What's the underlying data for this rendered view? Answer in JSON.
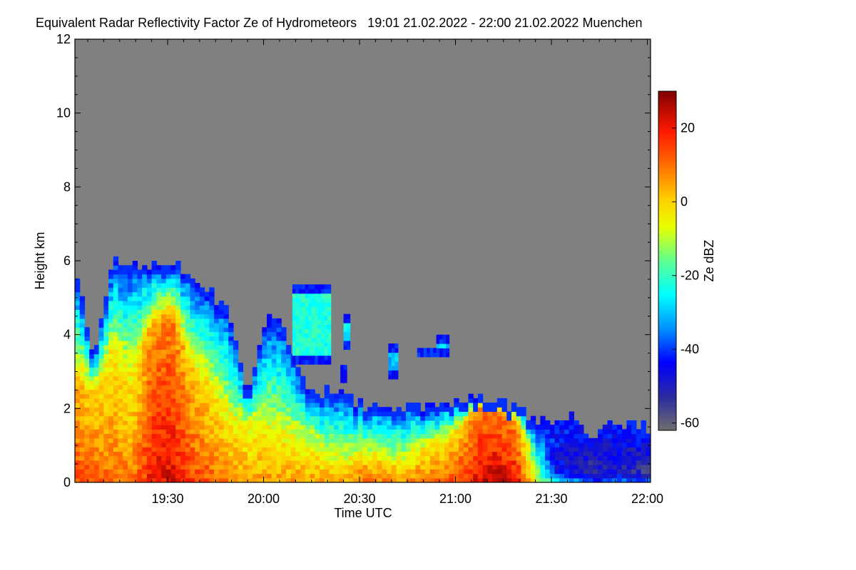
{
  "title": "Equivalent Radar Reflectivity Factor Ze of Hydrometeors   19:01 21.02.2022 - 22:00 21.02.2022 Muenchen",
  "chart_data": {
    "type": "heatmap",
    "title": "Equivalent Radar Reflectivity Factor Ze of Hydrometeors   19:01 21.02.2022 - 22:00 21.02.2022 Muenchen",
    "xlabel": "Time UTC",
    "ylabel": "Height km",
    "x_range": [
      "19:01",
      "22:00"
    ],
    "xlim_minutes": [
      0,
      180
    ],
    "x_ticks": [
      {
        "minute": 29,
        "label": "19:30"
      },
      {
        "minute": 59,
        "label": "20:00"
      },
      {
        "minute": 89,
        "label": "20:30"
      },
      {
        "minute": 119,
        "label": "21:00"
      },
      {
        "minute": 149,
        "label": "21:30"
      },
      {
        "minute": 179,
        "label": "22:00"
      }
    ],
    "ylim": [
      0,
      12
    ],
    "y_ticks": [
      0,
      2,
      4,
      6,
      8,
      10,
      12
    ],
    "y_tick_labels": [
      "0",
      "2",
      "4",
      "6",
      "8",
      "10",
      "12"
    ],
    "background_color": "#808080",
    "colorbar": {
      "label": "Ze dBZ",
      "range": [
        -62,
        30
      ],
      "ticks": [
        20,
        0,
        -20,
        -40,
        -60
      ],
      "tick_labels": [
        "20",
        "0",
        "-20",
        "-40",
        "-60"
      ],
      "colormap": "jet-like (grey at low end, dark red at high end)"
    },
    "echo_profile": [
      {
        "t": 0,
        "top": 5.9,
        "core": 2.8,
        "ze_low": 15
      },
      {
        "t": 6,
        "top": 3.2,
        "core": 2.4,
        "ze_low": 12
      },
      {
        "t": 12,
        "top": 6.0,
        "core": 3.5,
        "ze_low": 10
      },
      {
        "t": 18,
        "top": 5.8,
        "core": 3.0,
        "ze_low": 8
      },
      {
        "t": 24,
        "top": 5.7,
        "core": 4.0,
        "ze_low": 20
      },
      {
        "t": 30,
        "top": 6.0,
        "core": 4.5,
        "ze_low": 22
      },
      {
        "t": 36,
        "top": 5.4,
        "core": 3.0,
        "ze_low": 15
      },
      {
        "t": 42,
        "top": 5.2,
        "core": 2.5,
        "ze_low": 12
      },
      {
        "t": 48,
        "top": 4.5,
        "core": 1.8,
        "ze_low": 8
      },
      {
        "t": 54,
        "top": 2.4,
        "core": 1.6,
        "ze_low": 5
      },
      {
        "t": 60,
        "top": 4.6,
        "core": 1.7,
        "ze_low": 6
      },
      {
        "t": 66,
        "top": 4.0,
        "core": 1.5,
        "ze_low": 5
      },
      {
        "t": 72,
        "top": 2.5,
        "core": 1.3,
        "ze_low": 4
      },
      {
        "t": 78,
        "top": 2.4,
        "core": 1.0,
        "ze_low": 4
      },
      {
        "t": 84,
        "top": 2.3,
        "core": 0.8,
        "ze_low": 3
      },
      {
        "t": 90,
        "top": 2.0,
        "core": 0.7,
        "ze_low": 10
      },
      {
        "t": 96,
        "top": 2.1,
        "core": 0.7,
        "ze_low": 8
      },
      {
        "t": 102,
        "top": 1.9,
        "core": 0.6,
        "ze_low": 6
      },
      {
        "t": 108,
        "top": 2.0,
        "core": 0.9,
        "ze_low": 8
      },
      {
        "t": 114,
        "top": 2.1,
        "core": 1.0,
        "ze_low": 10
      },
      {
        "t": 120,
        "top": 2.2,
        "core": 1.3,
        "ze_low": 14
      },
      {
        "t": 126,
        "top": 2.3,
        "core": 2.0,
        "ze_low": 22
      },
      {
        "t": 132,
        "top": 2.1,
        "core": 1.9,
        "ze_low": 24
      },
      {
        "t": 138,
        "top": 2.0,
        "core": 1.6,
        "ze_low": 20
      },
      {
        "t": 144,
        "top": 1.7,
        "core": 0.6,
        "ze_low": -5
      },
      {
        "t": 150,
        "top": 1.6,
        "core": 0.3,
        "ze_low": -30
      },
      {
        "t": 156,
        "top": 1.8,
        "core": 0.3,
        "ze_low": -35
      },
      {
        "t": 162,
        "top": 1.2,
        "core": 0.2,
        "ze_low": -40
      },
      {
        "t": 168,
        "top": 1.6,
        "core": 0.2,
        "ze_low": -35
      },
      {
        "t": 174,
        "top": 1.5,
        "core": 0.2,
        "ze_low": -38
      },
      {
        "t": 179,
        "top": 1.4,
        "core": 0.2,
        "ze_low": -40
      }
    ],
    "isolated_cells": [
      {
        "t0": 68,
        "t1": 80,
        "base": 3.2,
        "top": 5.3,
        "ze": -22
      },
      {
        "t0": 84,
        "t1": 86,
        "base": 3.6,
        "top": 4.5,
        "ze": -25
      },
      {
        "t0": 83,
        "t1": 85,
        "base": 2.7,
        "top": 3.1,
        "ze": -35
      },
      {
        "t0": 98,
        "t1": 101,
        "base": 2.8,
        "top": 3.7,
        "ze": -30
      },
      {
        "t0": 107,
        "t1": 113,
        "base": 3.4,
        "top": 3.6,
        "ze": -40
      },
      {
        "t0": 113,
        "t1": 117,
        "base": 3.4,
        "top": 3.9,
        "ze": -28
      }
    ]
  }
}
